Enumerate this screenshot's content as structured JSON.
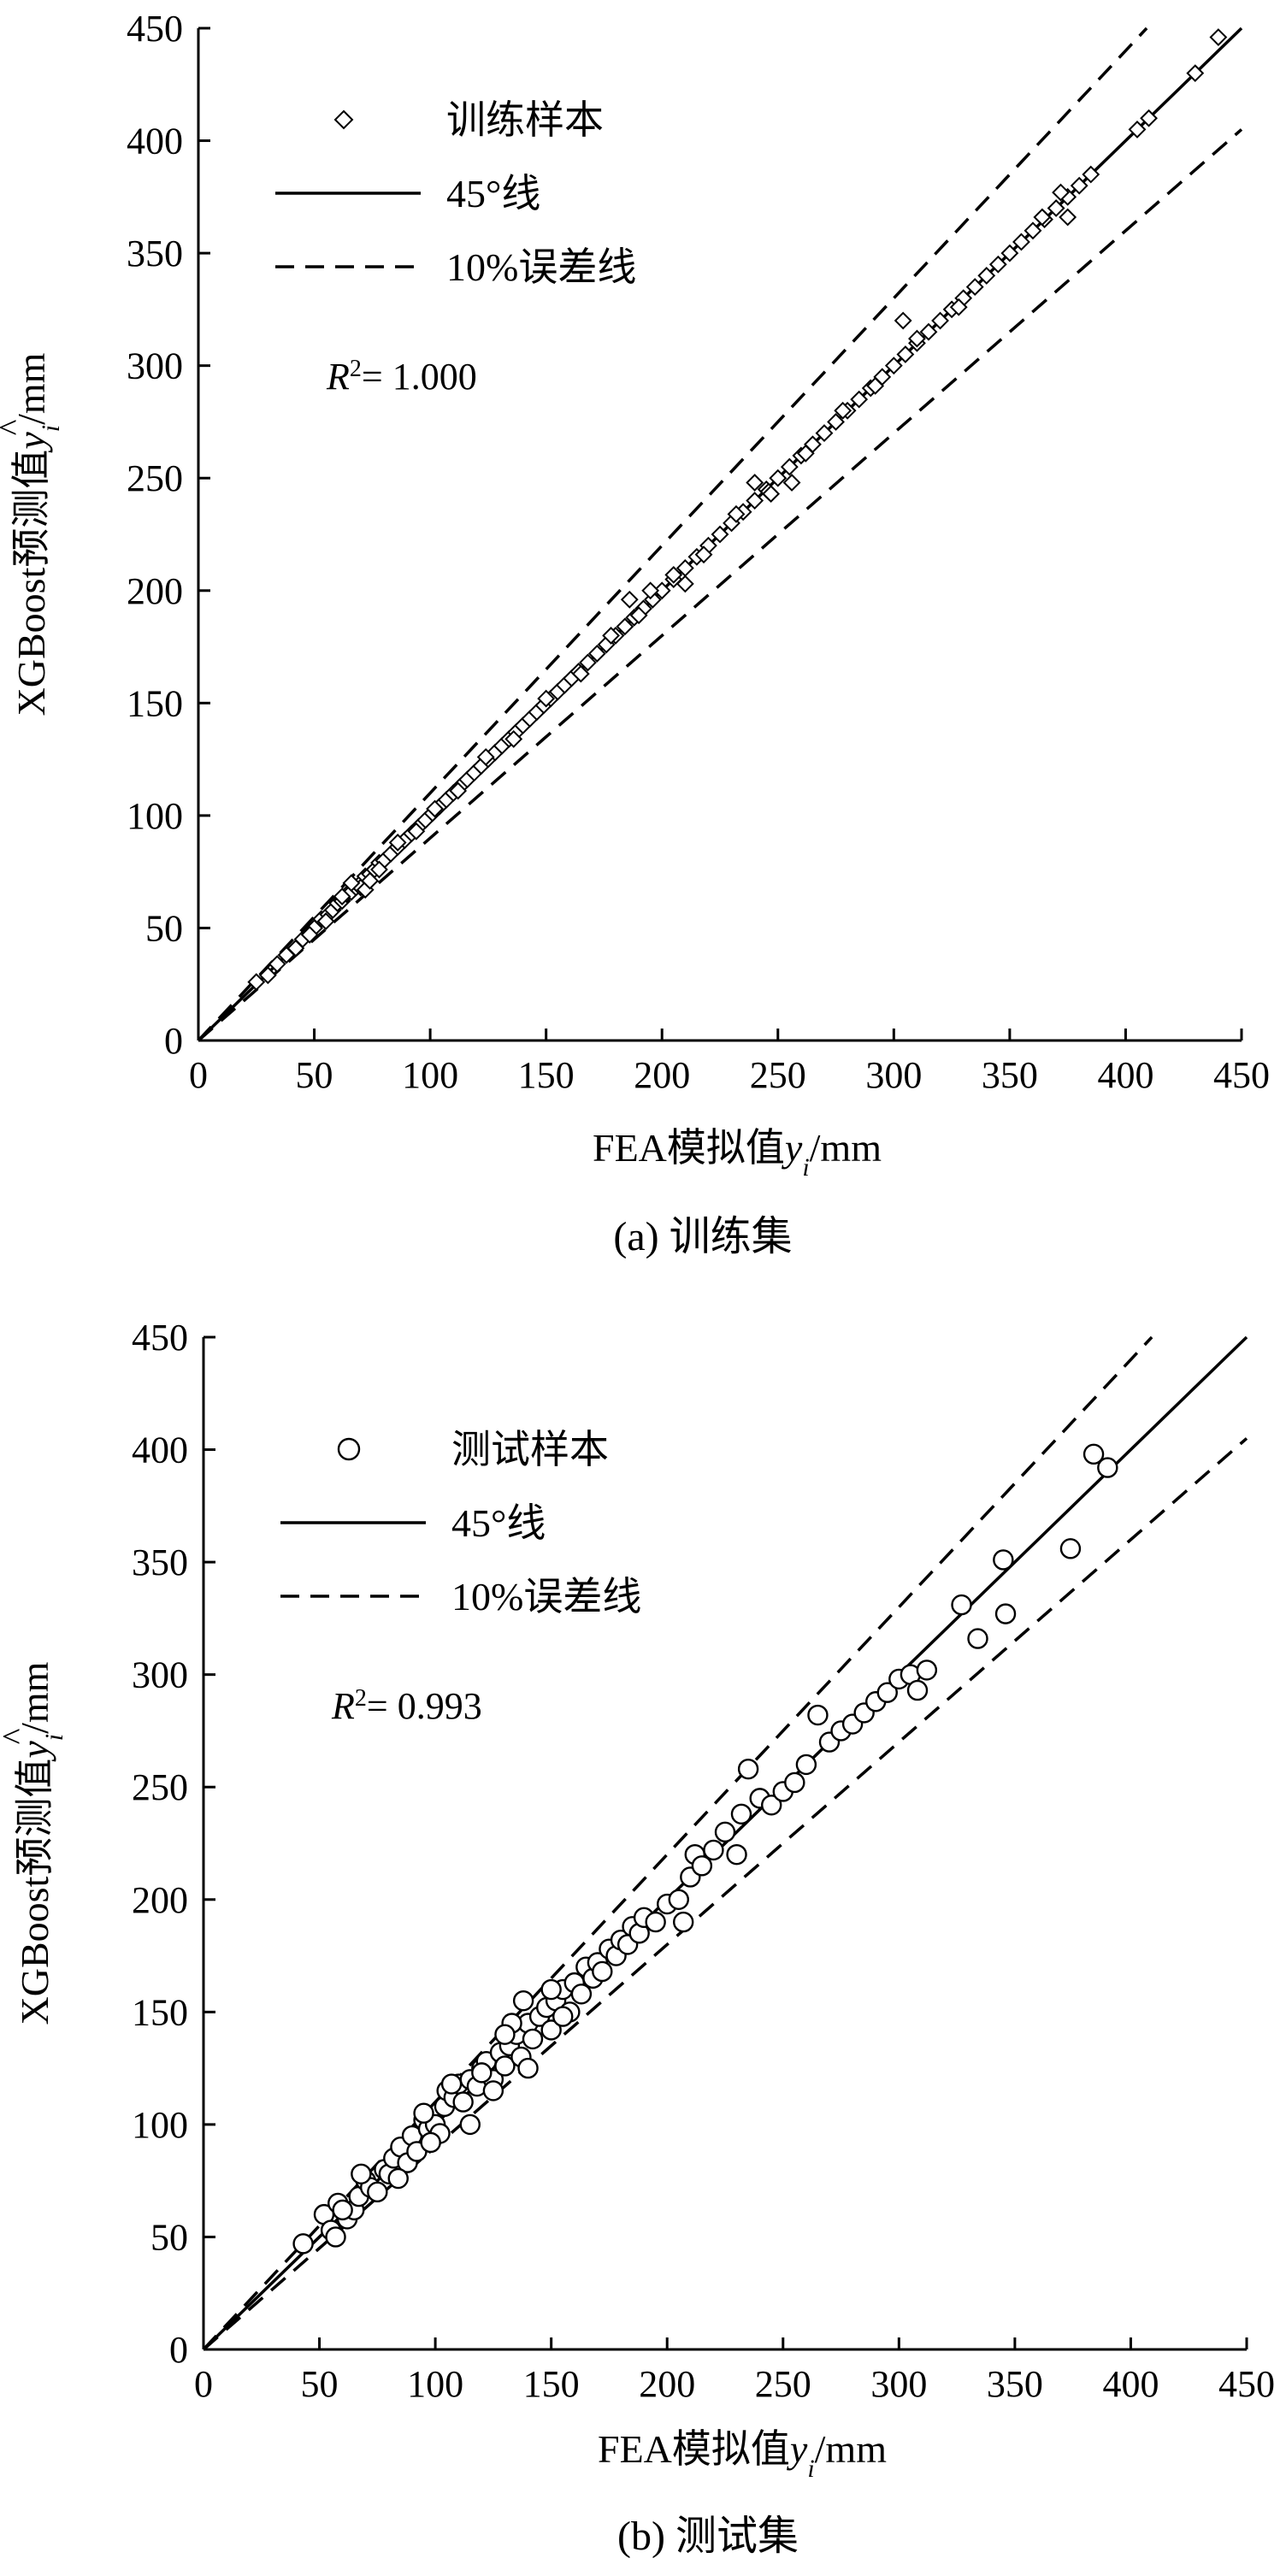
{
  "chart_data": [
    {
      "type": "scatter",
      "panel_caption": "(a) 训练集",
      "xlabel": {
        "prefix": "FEA模拟值",
        "var": "y",
        "sub": "i",
        "suffix": "/mm"
      },
      "ylabel": {
        "prefix": "XGBoost预测值",
        "var": "y",
        "hat": "^",
        "sub": "i",
        "suffix": "/mm"
      },
      "xlim": [
        0,
        450
      ],
      "ylim": [
        0,
        450
      ],
      "xticks": [
        0,
        50,
        100,
        150,
        200,
        250,
        300,
        350,
        400,
        450
      ],
      "yticks": [
        0,
        50,
        100,
        150,
        200,
        250,
        300,
        350,
        400,
        450
      ],
      "legend": {
        "position": "top-left",
        "entries": [
          {
            "label": "训练样本",
            "style": "diamond-marker"
          },
          {
            "label": "45°线",
            "style": "solid-line"
          },
          {
            "label": "10%误差线",
            "style": "dashed-line"
          }
        ]
      },
      "r2": {
        "symbol": "R",
        "sup": "2",
        "text": "= 1.000"
      },
      "reference_lines": [
        {
          "label": "45°线",
          "slope": 1.0
        },
        {
          "label": "10%误差线",
          "slope": 1.1
        },
        {
          "label": "10%误差线",
          "slope": 0.9
        }
      ],
      "series": [
        {
          "name": "训练样本",
          "marker": "diamond",
          "points": [
            [
              25,
              26
            ],
            [
              30,
              29
            ],
            [
              34,
              34
            ],
            [
              38,
              38
            ],
            [
              42,
              41
            ],
            [
              45,
              45
            ],
            [
              48,
              48
            ],
            [
              50,
              50
            ],
            [
              53,
              54
            ],
            [
              56,
              56
            ],
            [
              58,
              58
            ],
            [
              60,
              61
            ],
            [
              62,
              62
            ],
            [
              64,
              65
            ],
            [
              66,
              66
            ],
            [
              68,
              68
            ],
            [
              70,
              70
            ],
            [
              72,
              73
            ],
            [
              74,
              74
            ],
            [
              76,
              76
            ],
            [
              78,
              79
            ],
            [
              80,
              80
            ],
            [
              83,
              83
            ],
            [
              86,
              86
            ],
            [
              89,
              89
            ],
            [
              92,
              92
            ],
            [
              95,
              95
            ],
            [
              98,
              98
            ],
            [
              101,
              101
            ],
            [
              104,
              104
            ],
            [
              107,
              107
            ],
            [
              110,
              110
            ],
            [
              113,
              113
            ],
            [
              116,
              116
            ],
            [
              119,
              119
            ],
            [
              122,
              122
            ],
            [
              125,
              125
            ],
            [
              128,
              128
            ],
            [
              131,
              131
            ],
            [
              134,
              134
            ],
            [
              137,
              137
            ],
            [
              140,
              140
            ],
            [
              143,
              143
            ],
            [
              146,
              146
            ],
            [
              149,
              149
            ],
            [
              152,
              152
            ],
            [
              155,
              155
            ],
            [
              158,
              158
            ],
            [
              161,
              161
            ],
            [
              164,
              164
            ],
            [
              168,
              168
            ],
            [
              172,
              172
            ],
            [
              176,
              176
            ],
            [
              180,
              180
            ],
            [
              184,
              184
            ],
            [
              188,
              188
            ],
            [
              192,
              192
            ],
            [
              196,
              196
            ],
            [
              200,
              200
            ],
            [
              205,
              205
            ],
            [
              210,
              210
            ],
            [
              215,
              215
            ],
            [
              220,
              220
            ],
            [
              225,
              225
            ],
            [
              230,
              230
            ],
            [
              235,
              235
            ],
            [
              240,
              240
            ],
            [
              245,
              245
            ],
            [
              250,
              250
            ],
            [
              255,
              255
            ],
            [
              260,
              260
            ],
            [
              265,
              265
            ],
            [
              270,
              270
            ],
            [
              275,
              275
            ],
            [
              280,
              280
            ],
            [
              285,
              285
            ],
            [
              290,
              290
            ],
            [
              295,
              295
            ],
            [
              300,
              300
            ],
            [
              305,
              305
            ],
            [
              310,
              310
            ],
            [
              315,
              315
            ],
            [
              320,
              320
            ],
            [
              325,
              325
            ],
            [
              330,
              330
            ],
            [
              335,
              335
            ],
            [
              340,
              340
            ],
            [
              345,
              345
            ],
            [
              350,
              350
            ],
            [
              355,
              355
            ],
            [
              360,
              360
            ],
            [
              365,
              365
            ],
            [
              370,
              370
            ],
            [
              375,
              375
            ],
            [
              380,
              380
            ],
            [
              385,
              385
            ],
            [
              405,
              405
            ],
            [
              410,
              410
            ],
            [
              430,
              430
            ],
            [
              440,
              446
            ],
            [
              48,
              47
            ],
            [
              55,
              53
            ],
            [
              62,
              64
            ],
            [
              70,
              68
            ],
            [
              78,
              76
            ],
            [
              86,
              88
            ],
            [
              94,
              93
            ],
            [
              102,
              103
            ],
            [
              112,
              111
            ],
            [
              124,
              126
            ],
            [
              136,
              134
            ],
            [
              150,
              152
            ],
            [
              165,
              163
            ],
            [
              178,
              180
            ],
            [
              190,
              189
            ],
            [
              205,
              207
            ],
            [
              218,
              216
            ],
            [
              232,
              234
            ],
            [
              246,
              244
            ],
            [
              262,
              261
            ],
            [
              278,
              280
            ],
            [
              292,
              291
            ],
            [
              310,
              312
            ],
            [
              328,
              326
            ],
            [
              364,
              366
            ],
            [
              66,
              70
            ],
            [
              72,
              67
            ],
            [
              74,
              71
            ],
            [
              186,
              196
            ],
            [
              195,
              200
            ],
            [
              210,
              203
            ],
            [
              256,
              248
            ],
            [
              304,
              320
            ],
            [
              375,
              366
            ],
            [
              372,
              377
            ],
            [
              247,
              243
            ],
            [
              240,
              248
            ]
          ]
        }
      ]
    },
    {
      "type": "scatter",
      "panel_caption": "(b) 测试集",
      "xlabel": {
        "prefix": "FEA模拟值",
        "var": "y",
        "sub": "i",
        "suffix": "/mm"
      },
      "ylabel": {
        "prefix": "XGBoost预测值",
        "var": "y",
        "hat": "^",
        "sub": "i",
        "suffix": "/mm"
      },
      "xlim": [
        0,
        450
      ],
      "ylim": [
        0,
        450
      ],
      "xticks": [
        0,
        50,
        100,
        150,
        200,
        250,
        300,
        350,
        400,
        450
      ],
      "yticks": [
        0,
        50,
        100,
        150,
        200,
        250,
        300,
        350,
        400,
        450
      ],
      "legend": {
        "position": "top-left",
        "entries": [
          {
            "label": "测试样本",
            "style": "circle-marker"
          },
          {
            "label": "45°线",
            "style": "solid-line"
          },
          {
            "label": "10%误差线",
            "style": "dashed-line"
          }
        ]
      },
      "r2": {
        "symbol": "R",
        "sup": "2",
        "text": "= 0.993"
      },
      "reference_lines": [
        {
          "label": "45°线",
          "slope": 1.0
        },
        {
          "label": "10%误差线",
          "slope": 1.1
        },
        {
          "label": "10%误差线",
          "slope": 0.9
        }
      ],
      "series": [
        {
          "name": "测试样本",
          "marker": "circle",
          "points": [
            [
              43,
              47
            ],
            [
              52,
              60
            ],
            [
              55,
              53
            ],
            [
              57,
              50
            ],
            [
              58,
              65
            ],
            [
              62,
              58
            ],
            [
              65,
              62
            ],
            [
              67,
              68
            ],
            [
              70,
              75
            ],
            [
              72,
              72
            ],
            [
              75,
              70
            ],
            [
              78,
              80
            ],
            [
              80,
              78
            ],
            [
              82,
              85
            ],
            [
              85,
              90
            ],
            [
              88,
              83
            ],
            [
              90,
              95
            ],
            [
              92,
              88
            ],
            [
              95,
              102
            ],
            [
              97,
              98
            ],
            [
              100,
              100
            ],
            [
              102,
              96
            ],
            [
              104,
              108
            ],
            [
              105,
              115
            ],
            [
              108,
              112
            ],
            [
              110,
              118
            ],
            [
              112,
              110
            ],
            [
              115,
              120
            ],
            [
              118,
              117
            ],
            [
              120,
              125
            ],
            [
              122,
              128
            ],
            [
              125,
              120
            ],
            [
              128,
              132
            ],
            [
              130,
              126
            ],
            [
              132,
              135
            ],
            [
              135,
              140
            ],
            [
              137,
              130
            ],
            [
              140,
              145
            ],
            [
              142,
              138
            ],
            [
              145,
              148
            ],
            [
              148,
              152
            ],
            [
              150,
              142
            ],
            [
              152,
              155
            ],
            [
              155,
              160
            ],
            [
              158,
              150
            ],
            [
              160,
              163
            ],
            [
              163,
              158
            ],
            [
              165,
              170
            ],
            [
              168,
              165
            ],
            [
              170,
              172
            ],
            [
              172,
              168
            ],
            [
              175,
              178
            ],
            [
              178,
              175
            ],
            [
              180,
              182
            ],
            [
              183,
              180
            ],
            [
              185,
              188
            ],
            [
              188,
              185
            ],
            [
              190,
              192
            ],
            [
              195,
              190
            ],
            [
              200,
              198
            ],
            [
              205,
              200
            ],
            [
              207,
              190
            ],
            [
              210,
              210
            ],
            [
              212,
              220
            ],
            [
              215,
              215
            ],
            [
              220,
              222
            ],
            [
              225,
              230
            ],
            [
              230,
              220
            ],
            [
              232,
              238
            ],
            [
              235,
              258
            ],
            [
              240,
              245
            ],
            [
              245,
              242
            ],
            [
              250,
              248
            ],
            [
              255,
              252
            ],
            [
              260,
              260
            ],
            [
              265,
              282
            ],
            [
              270,
              270
            ],
            [
              275,
              275
            ],
            [
              280,
              278
            ],
            [
              285,
              283
            ],
            [
              290,
              288
            ],
            [
              295,
              292
            ],
            [
              300,
              298
            ],
            [
              305,
              300
            ],
            [
              308,
              293
            ],
            [
              312,
              302
            ],
            [
              327,
              331
            ],
            [
              334,
              316
            ],
            [
              345,
              351
            ],
            [
              346,
              327
            ],
            [
              374,
              356
            ],
            [
              384,
              398
            ],
            [
              390,
              392
            ],
            [
              95,
              105
            ],
            [
              133,
              145
            ],
            [
              140,
              125
            ],
            [
              150,
              160
            ],
            [
              155,
              148
            ],
            [
              115,
              100
            ],
            [
              125,
              115
            ],
            [
              98,
              92
            ],
            [
              68,
              78
            ],
            [
              60,
              62
            ],
            [
              138,
              155
            ],
            [
              130,
              140
            ],
            [
              120,
              123
            ],
            [
              107,
              118
            ],
            [
              84,
              76
            ]
          ]
        }
      ]
    }
  ]
}
